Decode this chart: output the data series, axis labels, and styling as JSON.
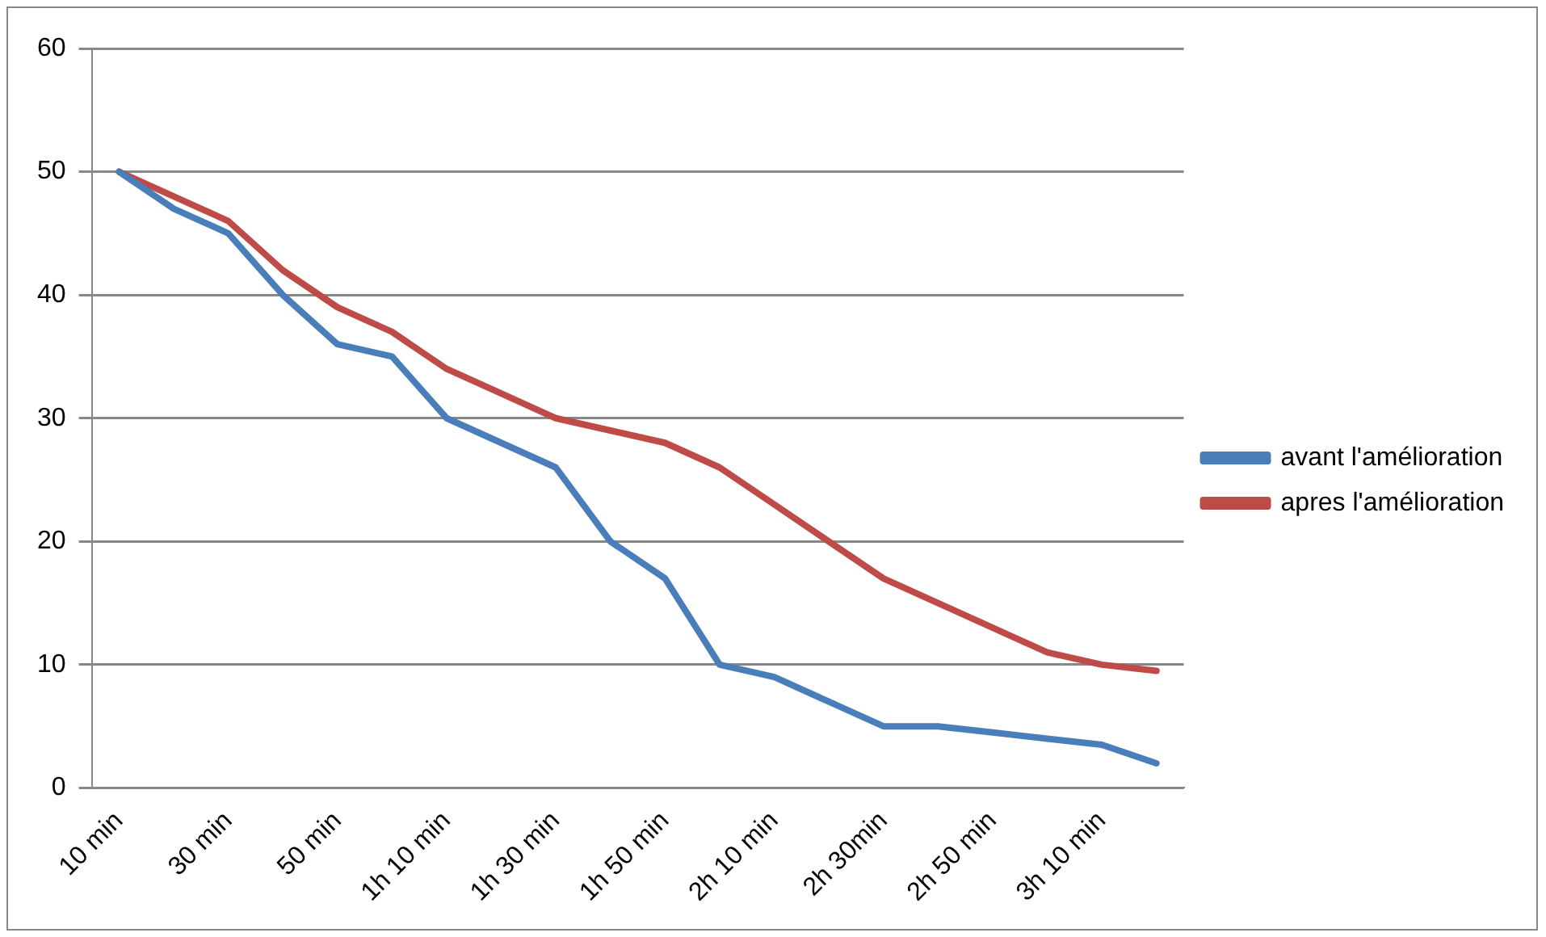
{
  "chart_data": {
    "type": "line",
    "categories": [
      "10 min",
      null,
      "30 min",
      null,
      "50 min",
      null,
      "1h 10 min",
      null,
      "1h 30 min",
      null,
      "1h 50 min",
      null,
      "2h 10 min",
      null,
      "2h 30min",
      null,
      "2h 50 min",
      null,
      "3h 10 min",
      null
    ],
    "series": [
      {
        "name": "avant l'amélioration",
        "color": "#4a7ebb",
        "values": [
          50,
          47,
          45,
          40,
          36,
          35,
          30,
          28,
          26,
          20,
          17,
          10,
          9,
          7,
          5,
          5,
          4.5,
          4,
          3.5,
          2
        ]
      },
      {
        "name": "apres l'amélioration",
        "color": "#be4b48",
        "values": [
          50,
          48,
          46,
          42,
          39,
          37,
          34,
          32,
          30,
          29,
          28,
          26,
          23,
          20,
          17,
          15,
          13,
          11,
          10,
          9.5
        ]
      }
    ],
    "ylim": [
      0,
      60
    ],
    "yticks": [
      0,
      10,
      20,
      30,
      40,
      50,
      60
    ],
    "grid": "y",
    "legend": "right",
    "marker": "none",
    "line_style": "solid"
  }
}
